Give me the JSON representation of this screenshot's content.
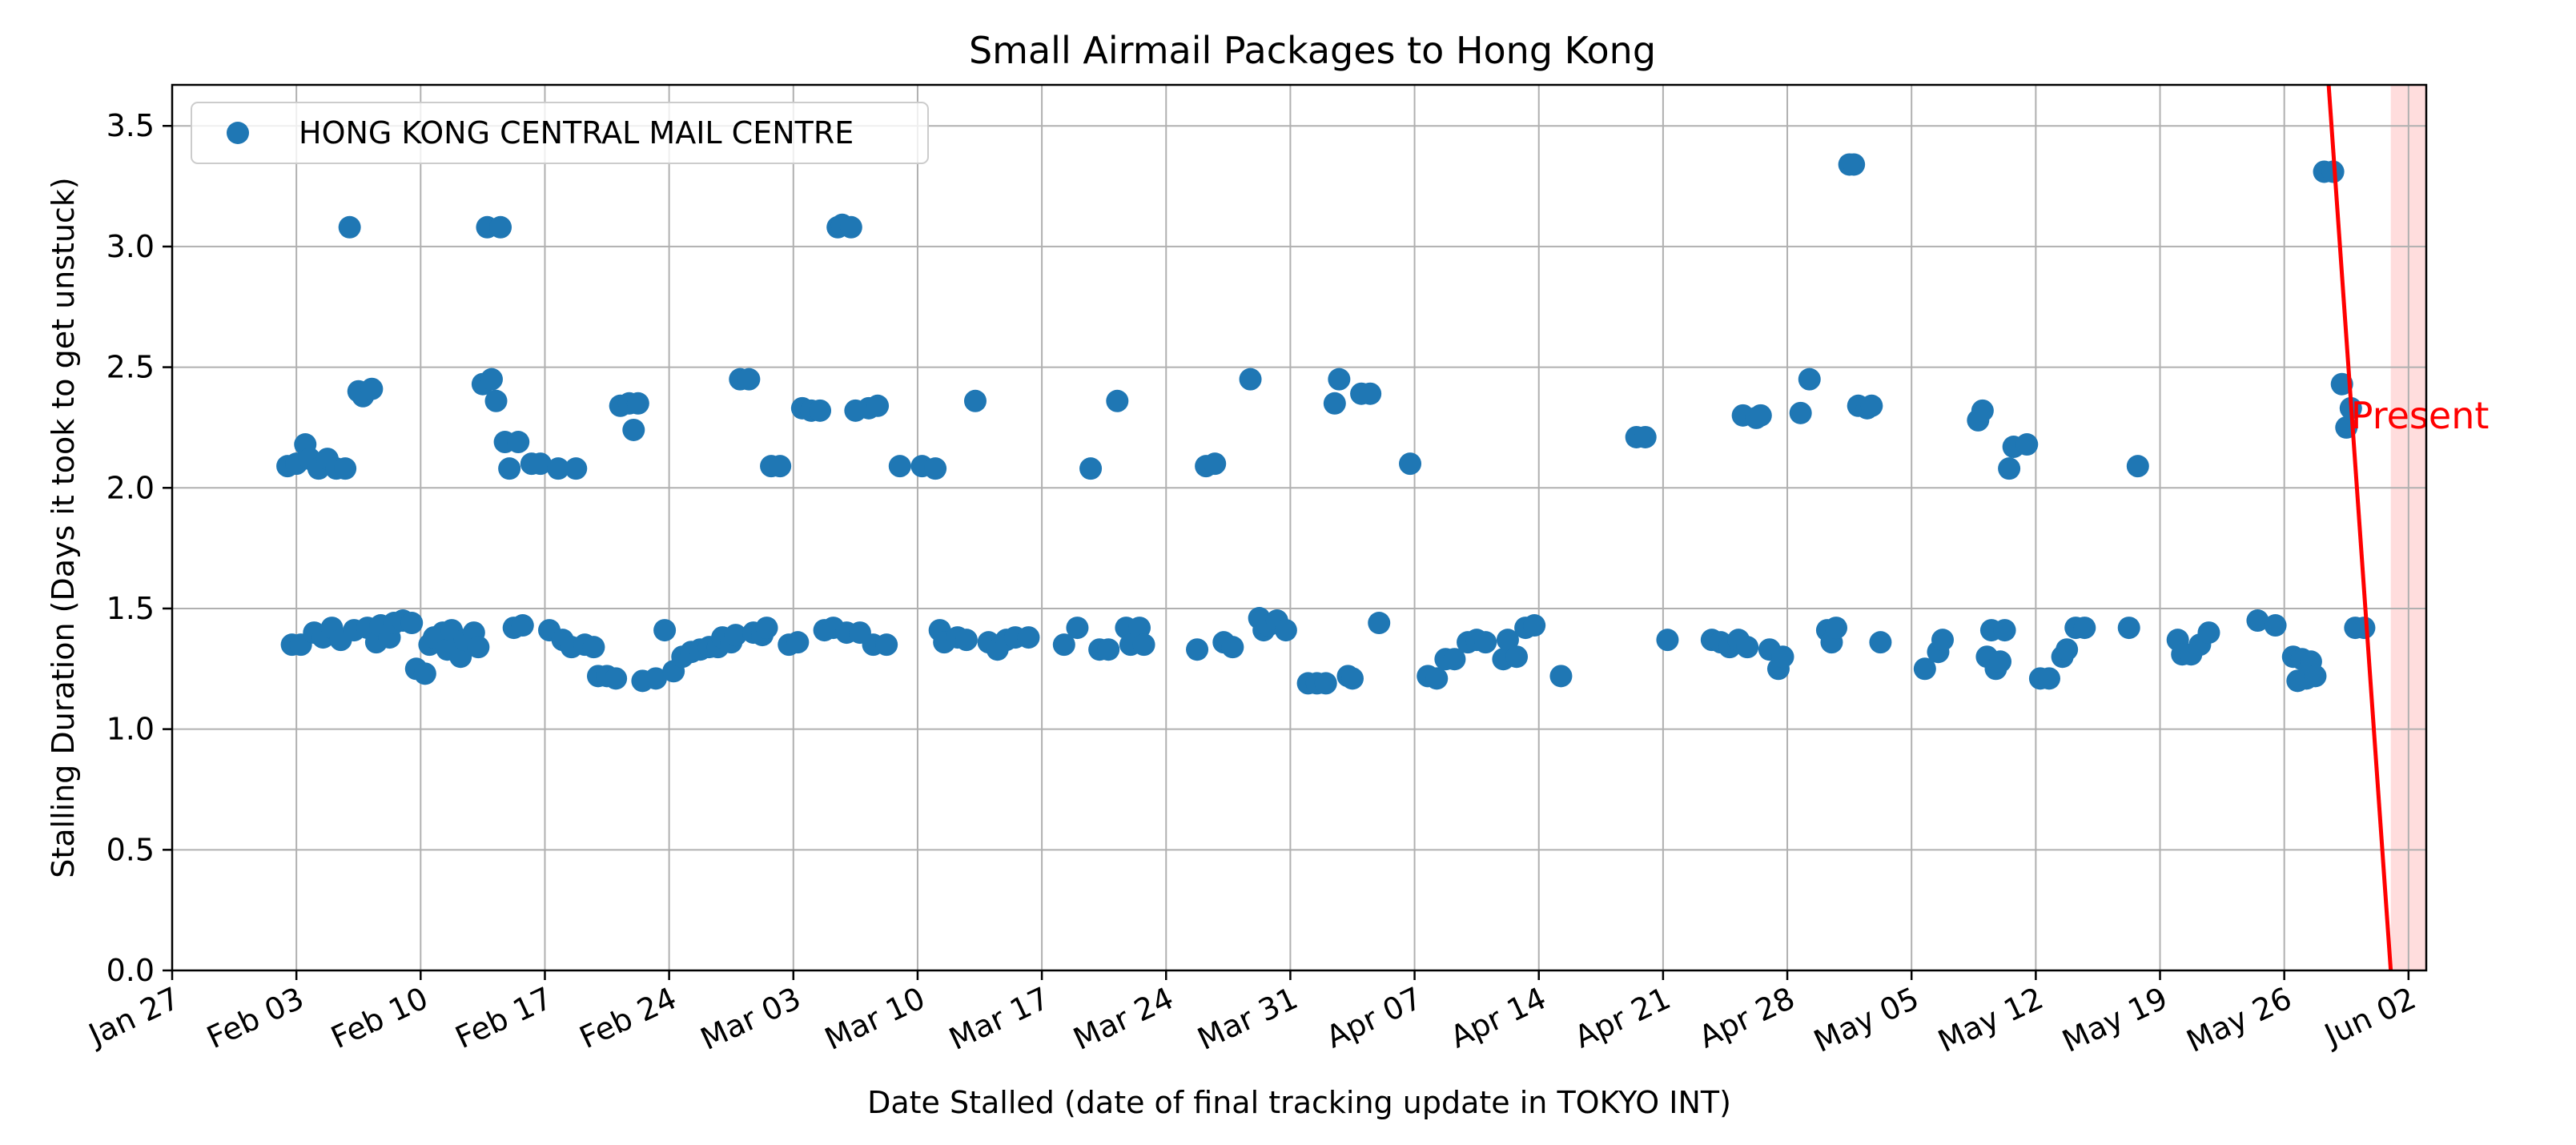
{
  "chart_data": {
    "type": "scatter",
    "title": "Small Airmail Packages to Hong Kong",
    "xlabel": "Date Stalled (date of final tracking update in TOKYO INT)",
    "ylabel": "Stalling Duration (Days it took to get unstuck)",
    "grid": true,
    "legend_position": "top-left",
    "xlim": [
      "2025-01-27",
      "2025-06-03"
    ],
    "ylim": [
      0,
      3.67
    ],
    "x_ticks": [
      "2025-01-27",
      "2025-02-03",
      "2025-02-10",
      "2025-02-17",
      "2025-02-24",
      "2025-03-03",
      "2025-03-10",
      "2025-03-17",
      "2025-03-24",
      "2025-03-31",
      "2025-04-07",
      "2025-04-14",
      "2025-04-21",
      "2025-04-28",
      "2025-05-05",
      "2025-05-12",
      "2025-05-19",
      "2025-05-26",
      "2025-06-02"
    ],
    "x_tick_labels": [
      "Jan 27",
      "Feb 03",
      "Feb 10",
      "Feb 17",
      "Feb 24",
      "Mar 03",
      "Mar 10",
      "Mar 17",
      "Mar 24",
      "Mar 31",
      "Apr 07",
      "Apr 14",
      "Apr 21",
      "Apr 28",
      "May 05",
      "May 12",
      "May 19",
      "May 26",
      "Jun 02"
    ],
    "y_ticks": [
      0.0,
      0.5,
      1.0,
      1.5,
      2.0,
      2.5,
      3.0,
      3.5
    ],
    "y_tick_labels": [
      "0.0",
      "0.5",
      "1.0",
      "1.5",
      "2.0",
      "2.5",
      "3.0",
      "3.5"
    ],
    "series": [
      {
        "name": "HONG KONG CENTRAL MAIL CENTRE",
        "color": "#1f77b4",
        "points": [
          [
            "2025-02-02T12:00",
            2.09
          ],
          [
            "2025-02-03T00:00",
            2.1
          ],
          [
            "2025-02-03T12:00",
            2.18
          ],
          [
            "2025-02-03T18:00",
            2.12
          ],
          [
            "2025-02-04T06:00",
            2.08
          ],
          [
            "2025-02-04T18:00",
            2.12
          ],
          [
            "2025-02-05T06:00",
            2.08
          ],
          [
            "2025-02-05T18:00",
            2.08
          ],
          [
            "2025-02-06T00:00",
            3.08
          ],
          [
            "2025-02-06T12:00",
            2.4
          ],
          [
            "2025-02-06T18:00",
            2.38
          ],
          [
            "2025-02-07T06:00",
            2.41
          ],
          [
            "2025-02-02T18:00",
            1.35
          ],
          [
            "2025-02-03T06:00",
            1.35
          ],
          [
            "2025-02-04T00:00",
            1.4
          ],
          [
            "2025-02-04T12:00",
            1.38
          ],
          [
            "2025-02-05T00:00",
            1.42
          ],
          [
            "2025-02-05T12:00",
            1.37
          ],
          [
            "2025-02-06T06:00",
            1.41
          ],
          [
            "2025-02-07T00:00",
            1.42
          ],
          [
            "2025-02-07T12:00",
            1.36
          ],
          [
            "2025-02-07T18:00",
            1.43
          ],
          [
            "2025-02-08T06:00",
            1.38
          ],
          [
            "2025-02-08T12:00",
            1.44
          ],
          [
            "2025-02-09T00:00",
            1.45
          ],
          [
            "2025-02-09T12:00",
            1.44
          ],
          [
            "2025-02-09T18:00",
            1.25
          ],
          [
            "2025-02-10T06:00",
            1.23
          ],
          [
            "2025-02-10T12:00",
            1.35
          ],
          [
            "2025-02-10T18:00",
            1.38
          ],
          [
            "2025-02-11T06:00",
            1.4
          ],
          [
            "2025-02-11T12:00",
            1.33
          ],
          [
            "2025-02-11T18:00",
            1.41
          ],
          [
            "2025-02-12T06:00",
            1.3
          ],
          [
            "2025-02-12T12:00",
            1.37
          ],
          [
            "2025-02-13T00:00",
            1.4
          ],
          [
            "2025-02-13T06:00",
            1.34
          ],
          [
            "2025-02-13T12:00",
            2.43
          ],
          [
            "2025-02-13T18:00",
            3.08
          ],
          [
            "2025-02-14T00:00",
            2.45
          ],
          [
            "2025-02-14T06:00",
            2.36
          ],
          [
            "2025-02-14T12:00",
            3.08
          ],
          [
            "2025-02-14T18:00",
            2.19
          ],
          [
            "2025-02-15T00:00",
            2.08
          ],
          [
            "2025-02-15T06:00",
            1.42
          ],
          [
            "2025-02-15T12:00",
            2.19
          ],
          [
            "2025-02-15T18:00",
            1.43
          ],
          [
            "2025-02-16T06:00",
            2.1
          ],
          [
            "2025-02-16T18:00",
            2.1
          ],
          [
            "2025-02-17T06:00",
            1.41
          ],
          [
            "2025-02-17T18:00",
            2.08
          ],
          [
            "2025-02-18T00:00",
            1.37
          ],
          [
            "2025-02-18T12:00",
            1.34
          ],
          [
            "2025-02-18T18:00",
            2.08
          ],
          [
            "2025-02-19T06:00",
            1.35
          ],
          [
            "2025-02-19T18:00",
            1.34
          ],
          [
            "2025-02-20T00:00",
            1.22
          ],
          [
            "2025-02-20T12:00",
            1.22
          ],
          [
            "2025-02-21T00:00",
            1.21
          ],
          [
            "2025-02-21T06:00",
            2.34
          ],
          [
            "2025-02-21T18:00",
            2.35
          ],
          [
            "2025-02-22T00:00",
            2.24
          ],
          [
            "2025-02-22T06:00",
            2.35
          ],
          [
            "2025-02-22T12:00",
            1.2
          ],
          [
            "2025-02-23T06:00",
            1.21
          ],
          [
            "2025-02-23T18:00",
            1.41
          ],
          [
            "2025-02-24T06:00",
            1.24
          ],
          [
            "2025-02-24T18:00",
            1.3
          ],
          [
            "2025-02-25T06:00",
            1.32
          ],
          [
            "2025-02-25T18:00",
            1.33
          ],
          [
            "2025-02-26T06:00",
            1.34
          ],
          [
            "2025-02-26T18:00",
            1.34
          ],
          [
            "2025-02-27T00:00",
            1.38
          ],
          [
            "2025-02-27T12:00",
            1.36
          ],
          [
            "2025-02-27T18:00",
            1.39
          ],
          [
            "2025-02-28T00:00",
            2.45
          ],
          [
            "2025-02-28T12:00",
            2.45
          ],
          [
            "2025-02-28T18:00",
            1.4
          ],
          [
            "2025-03-01T06:00",
            1.39
          ],
          [
            "2025-03-01T12:00",
            1.42
          ],
          [
            "2025-03-01T18:00",
            2.09
          ],
          [
            "2025-03-02T06:00",
            2.09
          ],
          [
            "2025-03-02T18:00",
            1.35
          ],
          [
            "2025-03-03T06:00",
            1.36
          ],
          [
            "2025-03-03T12:00",
            2.33
          ],
          [
            "2025-03-04T00:00",
            2.32
          ],
          [
            "2025-03-04T12:00",
            2.32
          ],
          [
            "2025-03-04T18:00",
            1.41
          ],
          [
            "2025-03-05T06:00",
            1.42
          ],
          [
            "2025-03-05T12:00",
            3.08
          ],
          [
            "2025-03-05T18:00",
            3.09
          ],
          [
            "2025-03-06T00:00",
            1.4
          ],
          [
            "2025-03-06T06:00",
            3.08
          ],
          [
            "2025-03-06T12:00",
            2.32
          ],
          [
            "2025-03-06T18:00",
            1.4
          ],
          [
            "2025-03-07T06:00",
            2.33
          ],
          [
            "2025-03-07T12:00",
            1.35
          ],
          [
            "2025-03-07T18:00",
            2.34
          ],
          [
            "2025-03-08T06:00",
            1.35
          ],
          [
            "2025-03-09T00:00",
            2.09
          ],
          [
            "2025-03-10T06:00",
            2.09
          ],
          [
            "2025-03-11T00:00",
            2.08
          ],
          [
            "2025-03-11T06:00",
            1.41
          ],
          [
            "2025-03-11T12:00",
            1.36
          ],
          [
            "2025-03-12T06:00",
            1.38
          ],
          [
            "2025-03-12T18:00",
            1.37
          ],
          [
            "2025-03-13T06:00",
            2.36
          ],
          [
            "2025-03-14T00:00",
            1.36
          ],
          [
            "2025-03-14T12:00",
            1.33
          ],
          [
            "2025-03-15T00:00",
            1.37
          ],
          [
            "2025-03-15T12:00",
            1.38
          ],
          [
            "2025-03-16T06:00",
            1.38
          ],
          [
            "2025-03-18T06:00",
            1.35
          ],
          [
            "2025-03-19T00:00",
            1.42
          ],
          [
            "2025-03-19T18:00",
            2.08
          ],
          [
            "2025-03-20T06:00",
            1.33
          ],
          [
            "2025-03-20T18:00",
            1.33
          ],
          [
            "2025-03-21T06:00",
            2.36
          ],
          [
            "2025-03-21T18:00",
            1.42
          ],
          [
            "2025-03-22T00:00",
            1.35
          ],
          [
            "2025-03-22T12:00",
            1.42
          ],
          [
            "2025-03-22T18:00",
            1.35
          ],
          [
            "2025-03-25T18:00",
            1.33
          ],
          [
            "2025-03-26T06:00",
            2.09
          ],
          [
            "2025-03-26T18:00",
            2.1
          ],
          [
            "2025-03-27T06:00",
            1.36
          ],
          [
            "2025-03-27T18:00",
            1.34
          ],
          [
            "2025-03-28T18:00",
            2.45
          ],
          [
            "2025-03-29T06:00",
            1.46
          ],
          [
            "2025-03-29T12:00",
            1.41
          ],
          [
            "2025-03-29T18:00",
            1.43
          ],
          [
            "2025-03-30T06:00",
            1.45
          ],
          [
            "2025-03-30T18:00",
            1.41
          ],
          [
            "2025-04-01T00:00",
            1.19
          ],
          [
            "2025-04-01T12:00",
            1.19
          ],
          [
            "2025-04-02T00:00",
            1.19
          ],
          [
            "2025-04-02T12:00",
            2.35
          ],
          [
            "2025-04-02T18:00",
            2.45
          ],
          [
            "2025-04-03T06:00",
            1.22
          ],
          [
            "2025-04-03T12:00",
            1.21
          ],
          [
            "2025-04-04T00:00",
            2.39
          ],
          [
            "2025-04-04T12:00",
            2.39
          ],
          [
            "2025-04-05T00:00",
            1.44
          ],
          [
            "2025-04-06T18:00",
            2.1
          ],
          [
            "2025-04-07T18:00",
            1.22
          ],
          [
            "2025-04-08T06:00",
            1.21
          ],
          [
            "2025-04-08T18:00",
            1.29
          ],
          [
            "2025-04-09T06:00",
            1.29
          ],
          [
            "2025-04-10T00:00",
            1.36
          ],
          [
            "2025-04-10T12:00",
            1.37
          ],
          [
            "2025-04-11T00:00",
            1.36
          ],
          [
            "2025-04-12T00:00",
            1.29
          ],
          [
            "2025-04-12T06:00",
            1.37
          ],
          [
            "2025-04-12T18:00",
            1.3
          ],
          [
            "2025-04-13T06:00",
            1.42
          ],
          [
            "2025-04-13T18:00",
            1.43
          ],
          [
            "2025-04-15T06:00",
            1.22
          ],
          [
            "2025-04-19T12:00",
            2.21
          ],
          [
            "2025-04-20T00:00",
            2.21
          ],
          [
            "2025-04-21T06:00",
            1.37
          ],
          [
            "2025-04-23T18:00",
            1.37
          ],
          [
            "2025-04-24T06:00",
            1.36
          ],
          [
            "2025-04-24T18:00",
            1.34
          ],
          [
            "2025-04-25T06:00",
            1.37
          ],
          [
            "2025-04-25T12:00",
            2.3
          ],
          [
            "2025-04-25T18:00",
            1.34
          ],
          [
            "2025-04-26T06:00",
            2.29
          ],
          [
            "2025-04-26T12:00",
            2.3
          ],
          [
            "2025-04-27T00:00",
            1.33
          ],
          [
            "2025-04-27T12:00",
            1.25
          ],
          [
            "2025-04-27T18:00",
            1.3
          ],
          [
            "2025-04-28T18:00",
            2.31
          ],
          [
            "2025-04-29T06:00",
            2.45
          ],
          [
            "2025-04-30T06:00",
            1.41
          ],
          [
            "2025-04-30T12:00",
            1.36
          ],
          [
            "2025-04-30T18:00",
            1.42
          ],
          [
            "2025-05-01T12:00",
            3.34
          ],
          [
            "2025-05-01T18:00",
            3.34
          ],
          [
            "2025-05-02T00:00",
            2.34
          ],
          [
            "2025-05-02T12:00",
            2.33
          ],
          [
            "2025-05-02T18:00",
            2.34
          ],
          [
            "2025-05-03T06:00",
            1.36
          ],
          [
            "2025-05-05T18:00",
            1.25
          ],
          [
            "2025-05-06T12:00",
            1.32
          ],
          [
            "2025-05-06T18:00",
            1.37
          ],
          [
            "2025-05-08T18:00",
            2.28
          ],
          [
            "2025-05-09T00:00",
            2.32
          ],
          [
            "2025-05-09T06:00",
            1.3
          ],
          [
            "2025-05-09T12:00",
            1.41
          ],
          [
            "2025-05-09T18:00",
            1.25
          ],
          [
            "2025-05-10T00:00",
            1.28
          ],
          [
            "2025-05-10T06:00",
            1.41
          ],
          [
            "2025-05-10T12:00",
            2.08
          ],
          [
            "2025-05-10T18:00",
            2.17
          ],
          [
            "2025-05-11T12:00",
            2.18
          ],
          [
            "2025-05-12T06:00",
            1.21
          ],
          [
            "2025-05-12T18:00",
            1.21
          ],
          [
            "2025-05-13T12:00",
            1.3
          ],
          [
            "2025-05-13T18:00",
            1.33
          ],
          [
            "2025-05-14T06:00",
            1.42
          ],
          [
            "2025-05-14T18:00",
            1.42
          ],
          [
            "2025-05-17T06:00",
            1.42
          ],
          [
            "2025-05-17T18:00",
            2.09
          ],
          [
            "2025-05-20T00:00",
            1.37
          ],
          [
            "2025-05-20T06:00",
            1.31
          ],
          [
            "2025-05-20T18:00",
            1.31
          ],
          [
            "2025-05-21T06:00",
            1.35
          ],
          [
            "2025-05-21T18:00",
            1.4
          ],
          [
            "2025-05-24T12:00",
            1.45
          ],
          [
            "2025-05-25T12:00",
            1.43
          ],
          [
            "2025-05-26T12:00",
            1.3
          ],
          [
            "2025-05-26T18:00",
            1.2
          ],
          [
            "2025-05-27T00:00",
            1.29
          ],
          [
            "2025-05-27T06:00",
            1.21
          ],
          [
            "2025-05-27T12:00",
            1.28
          ],
          [
            "2025-05-27T18:00",
            1.22
          ],
          [
            "2025-05-28T06:00",
            3.31
          ],
          [
            "2025-05-28T18:00",
            3.31
          ],
          [
            "2025-05-29T06:00",
            2.43
          ],
          [
            "2025-05-29T12:00",
            2.25
          ],
          [
            "2025-05-29T18:00",
            2.33
          ],
          [
            "2025-05-30T00:00",
            1.42
          ],
          [
            "2025-05-30T12:00",
            1.42
          ]
        ]
      }
    ],
    "annotations": [
      {
        "text": "Present",
        "color": "#ff0000",
        "x": "2025-05-29T18:00",
        "y": 2.3,
        "shaded_from": "2025-06-01",
        "shaded_to": "2025-06-03",
        "shade_color": "#ffdddd",
        "line_from": [
          "2025-05-28T12:00",
          3.67
        ],
        "line_to": [
          "2025-06-01T00:00",
          0.0
        ]
      }
    ]
  }
}
